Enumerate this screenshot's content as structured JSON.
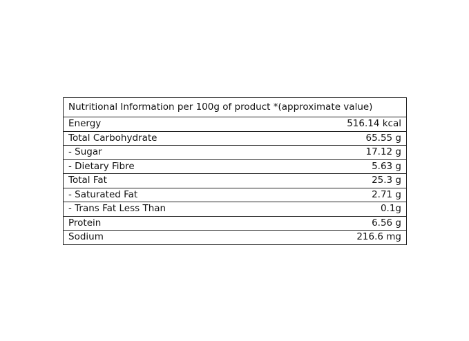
{
  "table": {
    "title": "Nutritional Information per 100g of product *(approximate value)",
    "rows": [
      [
        "Energy",
        "516.14 kcal"
      ],
      [
        "Total Carbohydrate",
        "65.55 g"
      ],
      [
        "- Sugar",
        "17.12 g"
      ],
      [
        "- Dietary Fibre",
        "5.63 g"
      ],
      [
        "Total Fat",
        "25.3 g"
      ],
      [
        "- Saturated Fat",
        "2.71 g"
      ],
      [
        "- Trans Fat Less Than",
        "0.1g"
      ],
      [
        "Protein",
        "6.56 g"
      ],
      [
        "Sodium",
        "216.6 mg"
      ]
    ]
  }
}
